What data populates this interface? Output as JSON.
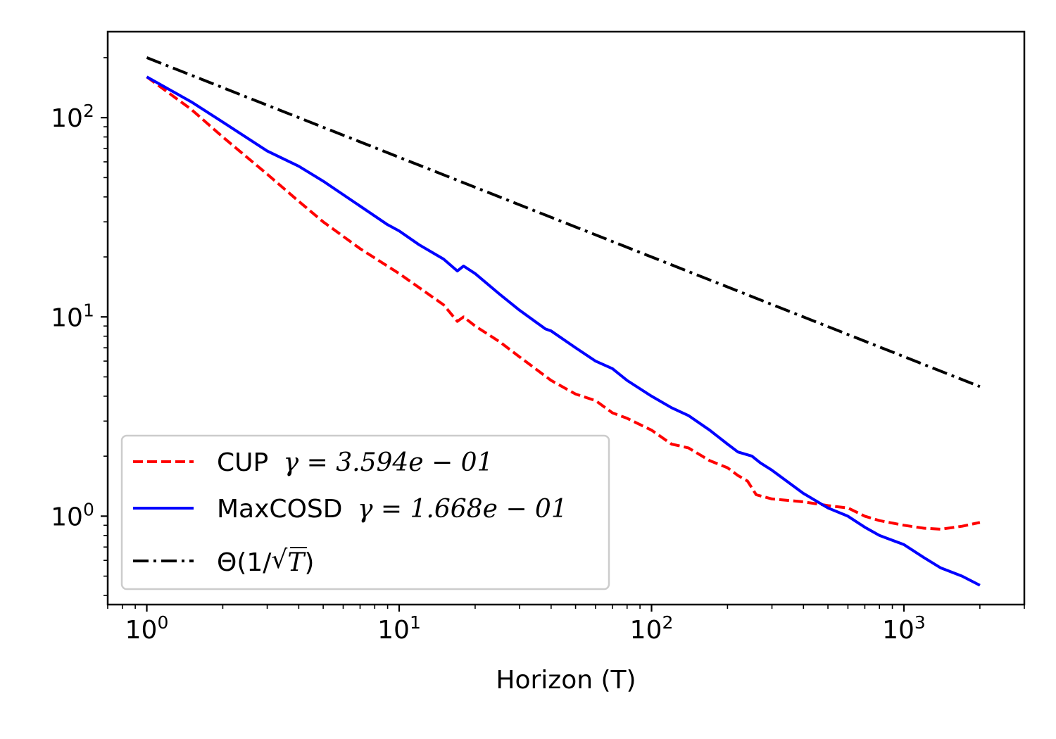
{
  "chart_data": {
    "type": "line",
    "xlabel": "Horizon (T)",
    "ylabel": "",
    "title": "",
    "x_scale": "log",
    "y_scale": "log",
    "xlim": [
      0.7,
      3000
    ],
    "ylim": [
      0.36,
      270
    ],
    "x_ticks": [
      {
        "value": 1,
        "exp": "0"
      },
      {
        "value": 10,
        "exp": "1"
      },
      {
        "value": 100,
        "exp": "2"
      },
      {
        "value": 1000,
        "exp": "3"
      }
    ],
    "y_ticks": [
      {
        "value": 1,
        "exp": "0"
      },
      {
        "value": 10,
        "exp": "1"
      },
      {
        "value": 100,
        "exp": "2"
      }
    ],
    "tick_base": "10",
    "grid": false,
    "legend_position": "lower-left",
    "series": [
      {
        "name": "CUP",
        "gamma_label": "γ = 3.594e − 01",
        "color": "#ff0000",
        "style": "dashed",
        "x": [
          1,
          1.5,
          2,
          3,
          4,
          5,
          7,
          10,
          15,
          17,
          18,
          20,
          25,
          30,
          40,
          50,
          60,
          70,
          80,
          100,
          120,
          140,
          170,
          200,
          220,
          240,
          260,
          300,
          400,
          500,
          600,
          700,
          800,
          1000,
          1200,
          1400,
          1700,
          2000
        ],
        "y": [
          160,
          110,
          80,
          52,
          38,
          30,
          22,
          16.5,
          11.5,
          9.5,
          10,
          9,
          7.5,
          6.3,
          4.8,
          4.1,
          3.8,
          3.3,
          3.1,
          2.7,
          2.3,
          2.2,
          1.9,
          1.75,
          1.6,
          1.5,
          1.28,
          1.22,
          1.18,
          1.13,
          1.1,
          1.0,
          0.95,
          0.9,
          0.87,
          0.86,
          0.89,
          0.93
        ]
      },
      {
        "name": "MaxCOSD",
        "gamma_label": "γ = 1.668e − 01",
        "color": "#0000ff",
        "style": "solid",
        "x": [
          1,
          1.5,
          2,
          3,
          4,
          5,
          7,
          9,
          10,
          12,
          15,
          17,
          18,
          20,
          25,
          30,
          38,
          40,
          50,
          60,
          70,
          80,
          100,
          120,
          140,
          170,
          200,
          220,
          250,
          270,
          300,
          400,
          500,
          600,
          700,
          800,
          1000,
          1200,
          1400,
          1700,
          2000
        ],
        "y": [
          160,
          120,
          95,
          68,
          57,
          48,
          36,
          29,
          27,
          23,
          19.5,
          17,
          18,
          16.5,
          13,
          10.8,
          8.7,
          8.5,
          7,
          6,
          5.5,
          4.8,
          4,
          3.5,
          3.2,
          2.7,
          2.3,
          2.1,
          2.0,
          1.85,
          1.7,
          1.3,
          1.1,
          1.0,
          0.88,
          0.8,
          0.72,
          0.62,
          0.55,
          0.5,
          0.45
        ]
      },
      {
        "name": "Θ(1/√T)",
        "color": "#000000",
        "style": "dashdot",
        "x": [
          1,
          2000
        ],
        "y": [
          200,
          4.47
        ]
      }
    ]
  },
  "legend": {
    "cup_name": "CUP",
    "cup_gamma": "γ = 3.594e − 01",
    "maxcosd_name": "MaxCOSD",
    "maxcosd_gamma": "γ = 1.668e − 01",
    "theta_prefix": "Θ(1/",
    "theta_sqrt_arg": "T",
    "theta_suffix": ")"
  }
}
